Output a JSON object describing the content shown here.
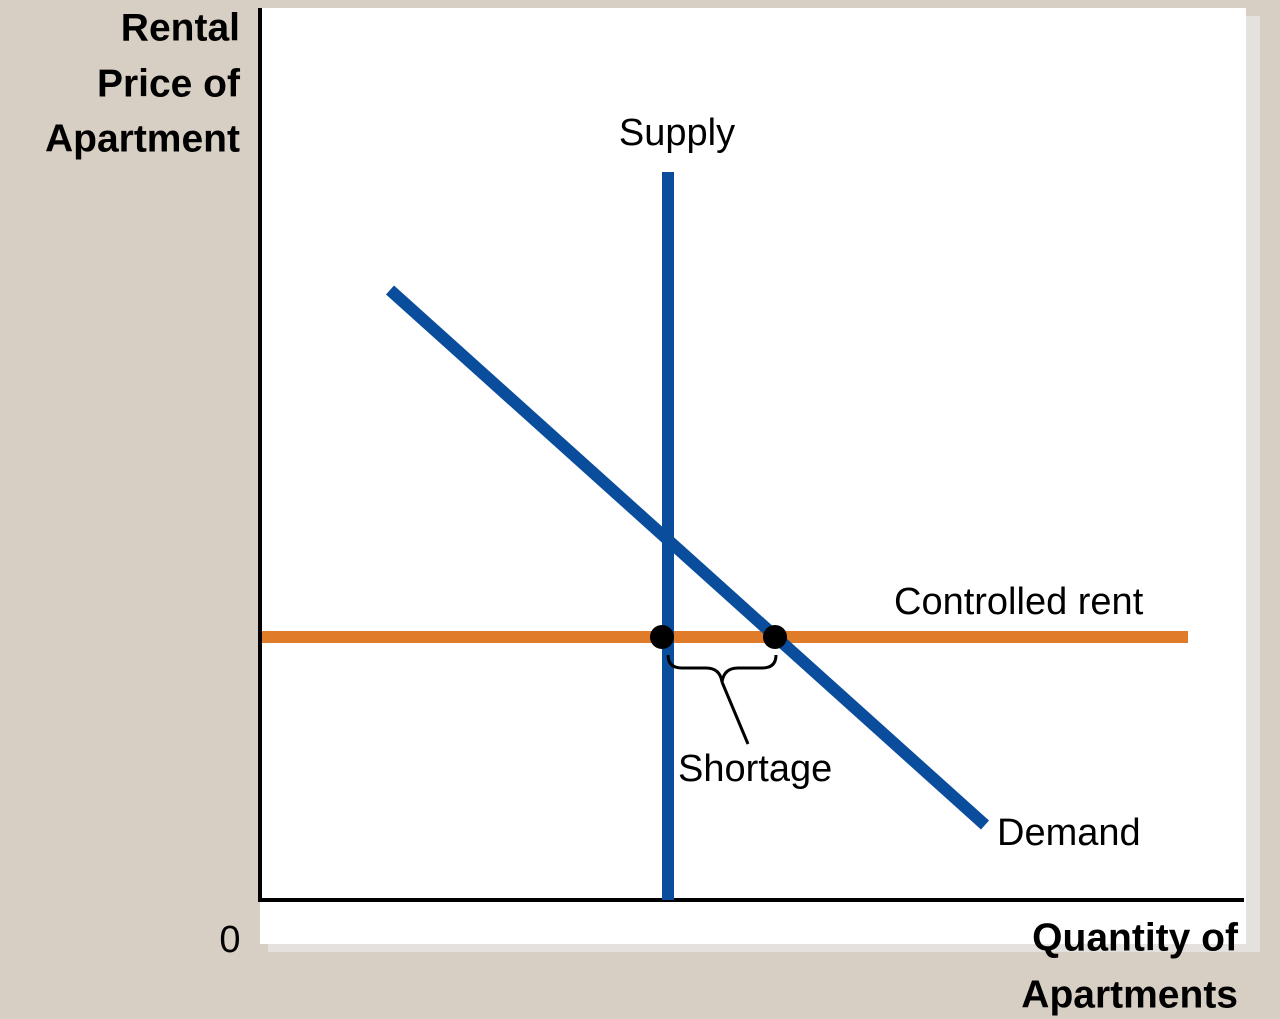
{
  "axes": {
    "y_label": [
      "Rental",
      "Price of",
      "Apartment"
    ],
    "x_label": [
      "Quantity of",
      "Apartments"
    ],
    "origin": "0"
  },
  "curves": {
    "supply": "Supply",
    "demand": "Demand",
    "controlled_rent": "Controlled rent"
  },
  "annotations": {
    "shortage": "Shortage"
  }
}
